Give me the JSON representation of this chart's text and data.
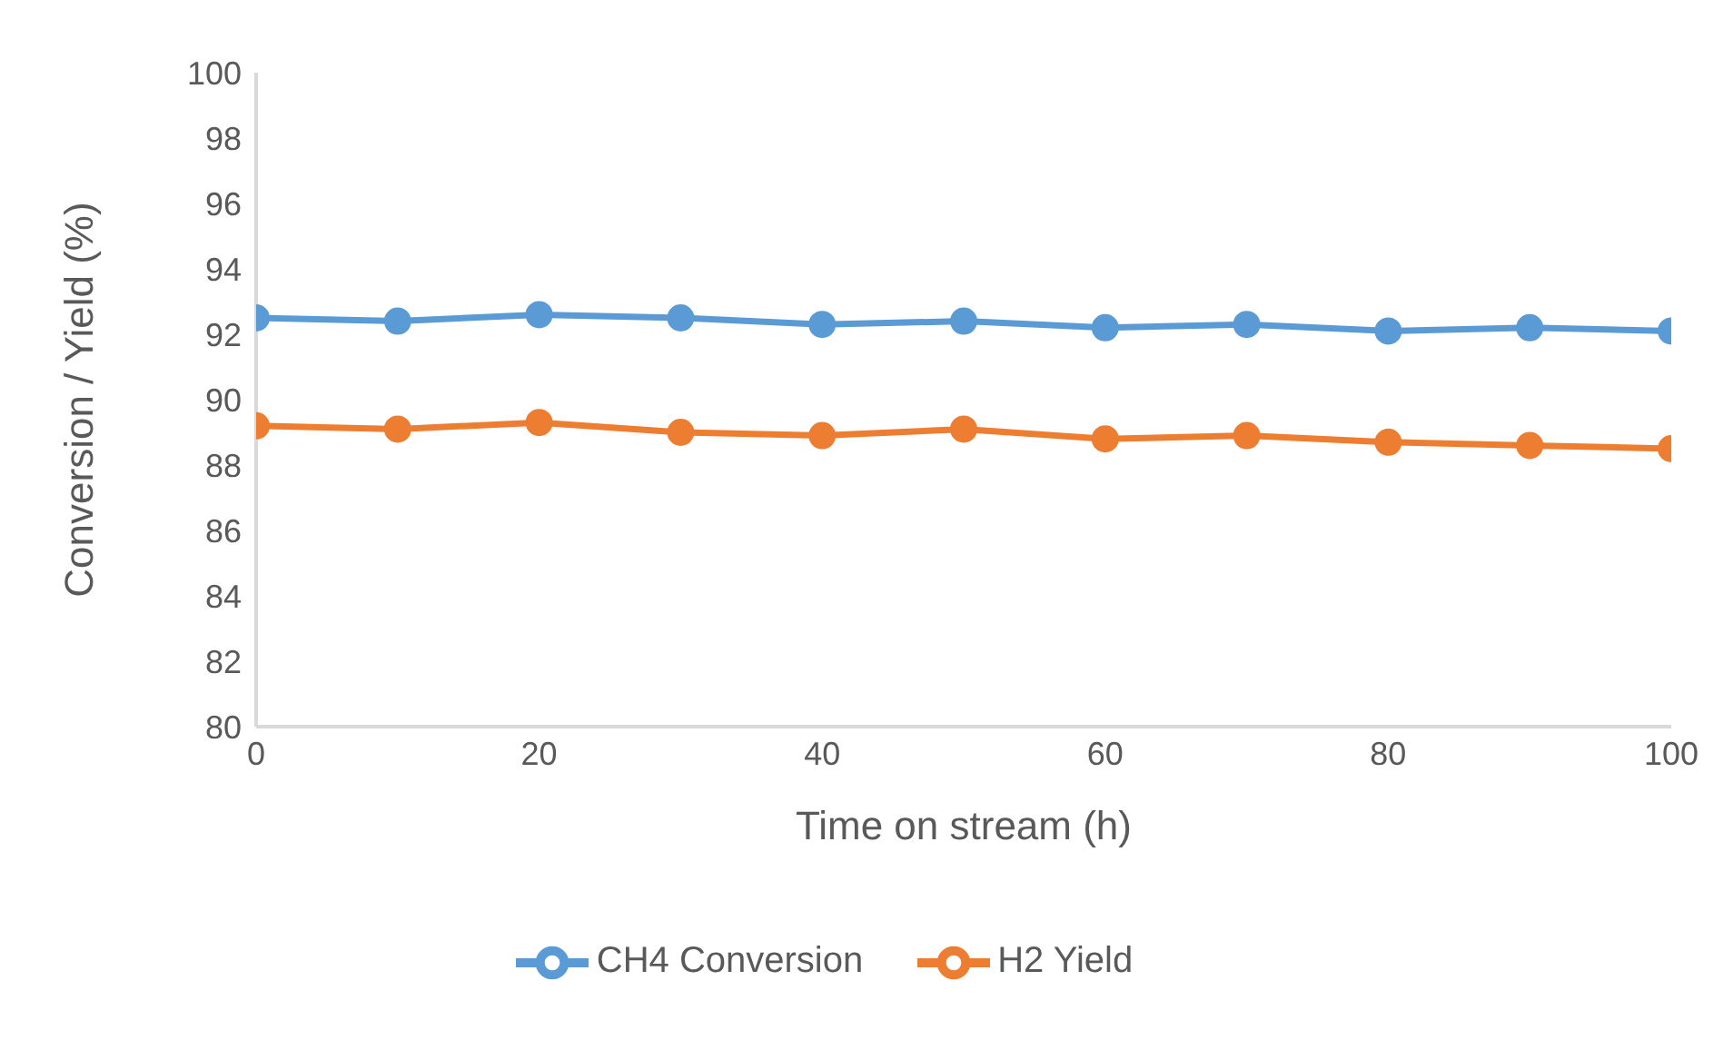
{
  "chart_data": {
    "type": "line",
    "xlabel": "Time on stream (h)",
    "ylabel": "Conversion / Yield (%)",
    "x": [
      0,
      10,
      20,
      30,
      40,
      50,
      60,
      70,
      80,
      90,
      100
    ],
    "series": [
      {
        "name": "CH4 Conversion",
        "color": "#5b9bd5",
        "values": [
          92.5,
          92.4,
          92.6,
          92.5,
          92.3,
          92.4,
          92.2,
          92.3,
          92.1,
          92.2,
          92.1
        ]
      },
      {
        "name": "H2 Yield",
        "color": "#ed7d31",
        "values": [
          89.2,
          89.1,
          89.3,
          89.0,
          88.9,
          89.1,
          88.8,
          88.9,
          88.7,
          88.6,
          88.5
        ]
      }
    ],
    "xlim": [
      0,
      100
    ],
    "xticks": [
      0,
      20,
      40,
      60,
      80,
      100
    ],
    "ylim": [
      80,
      100
    ],
    "yticks": [
      80,
      82,
      84,
      86,
      88,
      90,
      92,
      94,
      96,
      98,
      100
    ],
    "grid": false,
    "legend": "bottom",
    "marker": "circle",
    "line_style": "solid"
  }
}
